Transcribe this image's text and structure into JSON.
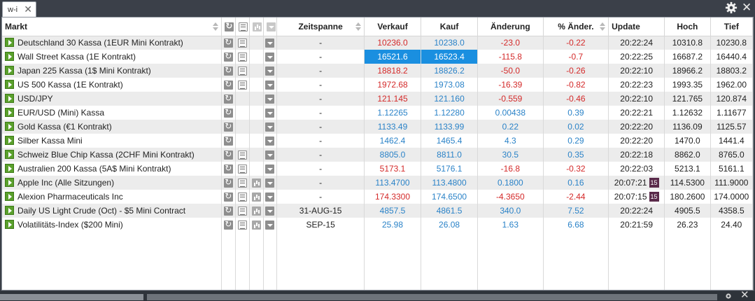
{
  "tab": {
    "label": "w-i",
    "close": "✕"
  },
  "window": {
    "close": "✕"
  },
  "headers": {
    "markt": "Markt",
    "zeitspanne": "Zeitspanne",
    "verkauf": "Verkauf",
    "kauf": "Kauf",
    "aenderung": "Änderung",
    "pct_aenderung": "% Änder.",
    "update": "Update",
    "hoch": "Hoch",
    "tief": "Tief"
  },
  "colors": {
    "positive": "#2b83c8",
    "negative": "#d42a2a",
    "highlight": "#1a8fe0",
    "play": "#5aa02c"
  },
  "rows": [
    {
      "markt": "Deutschland 30 Kassa (1EUR Mini Kontrakt)",
      "news": true,
      "chart": false,
      "zeit": "-",
      "verkauf": "10236.0",
      "kauf": "10238.0",
      "aend": "-23.0",
      "pct": "-0.22",
      "update": "20:22:24",
      "badge": "",
      "hoch": "10310.8",
      "tief": "10230.8",
      "dir": "neg",
      "hl": false
    },
    {
      "markt": "Wall Street Kassa (1E Kontrakt)",
      "news": true,
      "chart": false,
      "zeit": "-",
      "verkauf": "16521.6",
      "kauf": "16523.4",
      "aend": "-115.8",
      "pct": "-0.7",
      "update": "20:22:25",
      "badge": "",
      "hoch": "16687.2",
      "tief": "16440.4",
      "dir": "neg",
      "hl": true
    },
    {
      "markt": "Japan 225 Kassa (1$ Mini Kontrakt)",
      "news": true,
      "chart": false,
      "zeit": "-",
      "verkauf": "18818.2",
      "kauf": "18826.2",
      "aend": "-50.0",
      "pct": "-0.26",
      "update": "20:22:10",
      "badge": "",
      "hoch": "18966.2",
      "tief": "18803.2",
      "dir": "neg",
      "hl": false
    },
    {
      "markt": "US 500 Kassa (1E Kontrakt)",
      "news": true,
      "chart": false,
      "zeit": "-",
      "verkauf": "1972.68",
      "kauf": "1973.08",
      "aend": "-16.39",
      "pct": "-0.82",
      "update": "20:22:23",
      "badge": "",
      "hoch": "1993.35",
      "tief": "1962.00",
      "dir": "neg",
      "hl": false
    },
    {
      "markt": "USD/JPY",
      "news": false,
      "chart": false,
      "zeit": "-",
      "verkauf": "121.145",
      "kauf": "121.160",
      "aend": "-0.559",
      "pct": "-0.46",
      "update": "20:22:10",
      "badge": "",
      "hoch": "121.765",
      "tief": "120.874",
      "dir": "neg",
      "hl": false
    },
    {
      "markt": "EUR/USD (Mini) Kassa",
      "news": false,
      "chart": false,
      "zeit": "-",
      "verkauf": "1.12265",
      "kauf": "1.12280",
      "aend": "0.00438",
      "pct": "0.39",
      "update": "20:22:21",
      "badge": "",
      "hoch": "1.12632",
      "tief": "1.11677",
      "dir": "pos",
      "hl": false
    },
    {
      "markt": "Gold Kassa (€1 Kontrakt)",
      "news": false,
      "chart": false,
      "zeit": "-",
      "verkauf": "1133.49",
      "kauf": "1133.99",
      "aend": "0.22",
      "pct": "0.02",
      "update": "20:22:20",
      "badge": "",
      "hoch": "1136.09",
      "tief": "1125.57",
      "dir": "pos",
      "hl": false
    },
    {
      "markt": "Silber Kassa Mini",
      "news": false,
      "chart": false,
      "zeit": "-",
      "verkauf": "1462.4",
      "kauf": "1465.4",
      "aend": "4.3",
      "pct": "0.29",
      "update": "20:22:20",
      "badge": "",
      "hoch": "1470.0",
      "tief": "1441.4",
      "dir": "pos",
      "hl": false
    },
    {
      "markt": "Schweiz Blue Chip Kassa (2CHF Mini Kontrakt)",
      "news": true,
      "chart": false,
      "zeit": "-",
      "verkauf": "8805.0",
      "kauf": "8811.0",
      "aend": "30.5",
      "pct": "0.35",
      "update": "20:22:18",
      "badge": "",
      "hoch": "8862.0",
      "tief": "8765.0",
      "dir": "pos",
      "hl": false
    },
    {
      "markt": "Australien 200 Kassa (5A$ Mini Kontrakt)",
      "news": true,
      "chart": false,
      "zeit": "-",
      "verkauf": "5173.1",
      "kauf": "5176.1",
      "aend": "-16.8",
      "pct": "-0.32",
      "update": "20:22:03",
      "badge": "",
      "hoch": "5213.1",
      "tief": "5161.1",
      "dir": "neg",
      "hl": false
    },
    {
      "markt": "Apple Inc (Alle Sitzungen)",
      "news": true,
      "chart": true,
      "zeit": "-",
      "verkauf": "113.4700",
      "kauf": "113.4800",
      "aend": "0.1800",
      "pct": "0.16",
      "update": "20:07:21",
      "badge": "15",
      "hoch": "114.5300",
      "tief": "111.9000",
      "dir": "pos",
      "hl": false
    },
    {
      "markt": "Alexion Pharmaceuticals Inc",
      "news": true,
      "chart": true,
      "zeit": "-",
      "verkauf": "174.3300",
      "kauf": "174.6500",
      "aend": "-4.3650",
      "pct": "-2.44",
      "update": "20:07:15",
      "badge": "15",
      "hoch": "180.2600",
      "tief": "174.0000",
      "dir": "neg",
      "hl": false
    },
    {
      "markt": "Daily US Light Crude (Oct) - $5 Mini Contract",
      "news": true,
      "chart": true,
      "zeit": "31-AUG-15",
      "verkauf": "4857.5",
      "kauf": "4861.5",
      "aend": "340.0",
      "pct": "7.52",
      "update": "20:22:24",
      "badge": "",
      "hoch": "4905.5",
      "tief": "4358.5",
      "dir": "pos",
      "hl": false
    },
    {
      "markt": "Volatilitäts-Index ($200 Mini)",
      "news": true,
      "chart": true,
      "zeit": "SEP-15",
      "verkauf": "25.98",
      "kauf": "26.08",
      "aend": "1.63",
      "pct": "6.68",
      "update": "20:21:59",
      "badge": "",
      "hoch": "26.23",
      "tief": "24.40",
      "dir": "pos",
      "hl": false
    }
  ]
}
